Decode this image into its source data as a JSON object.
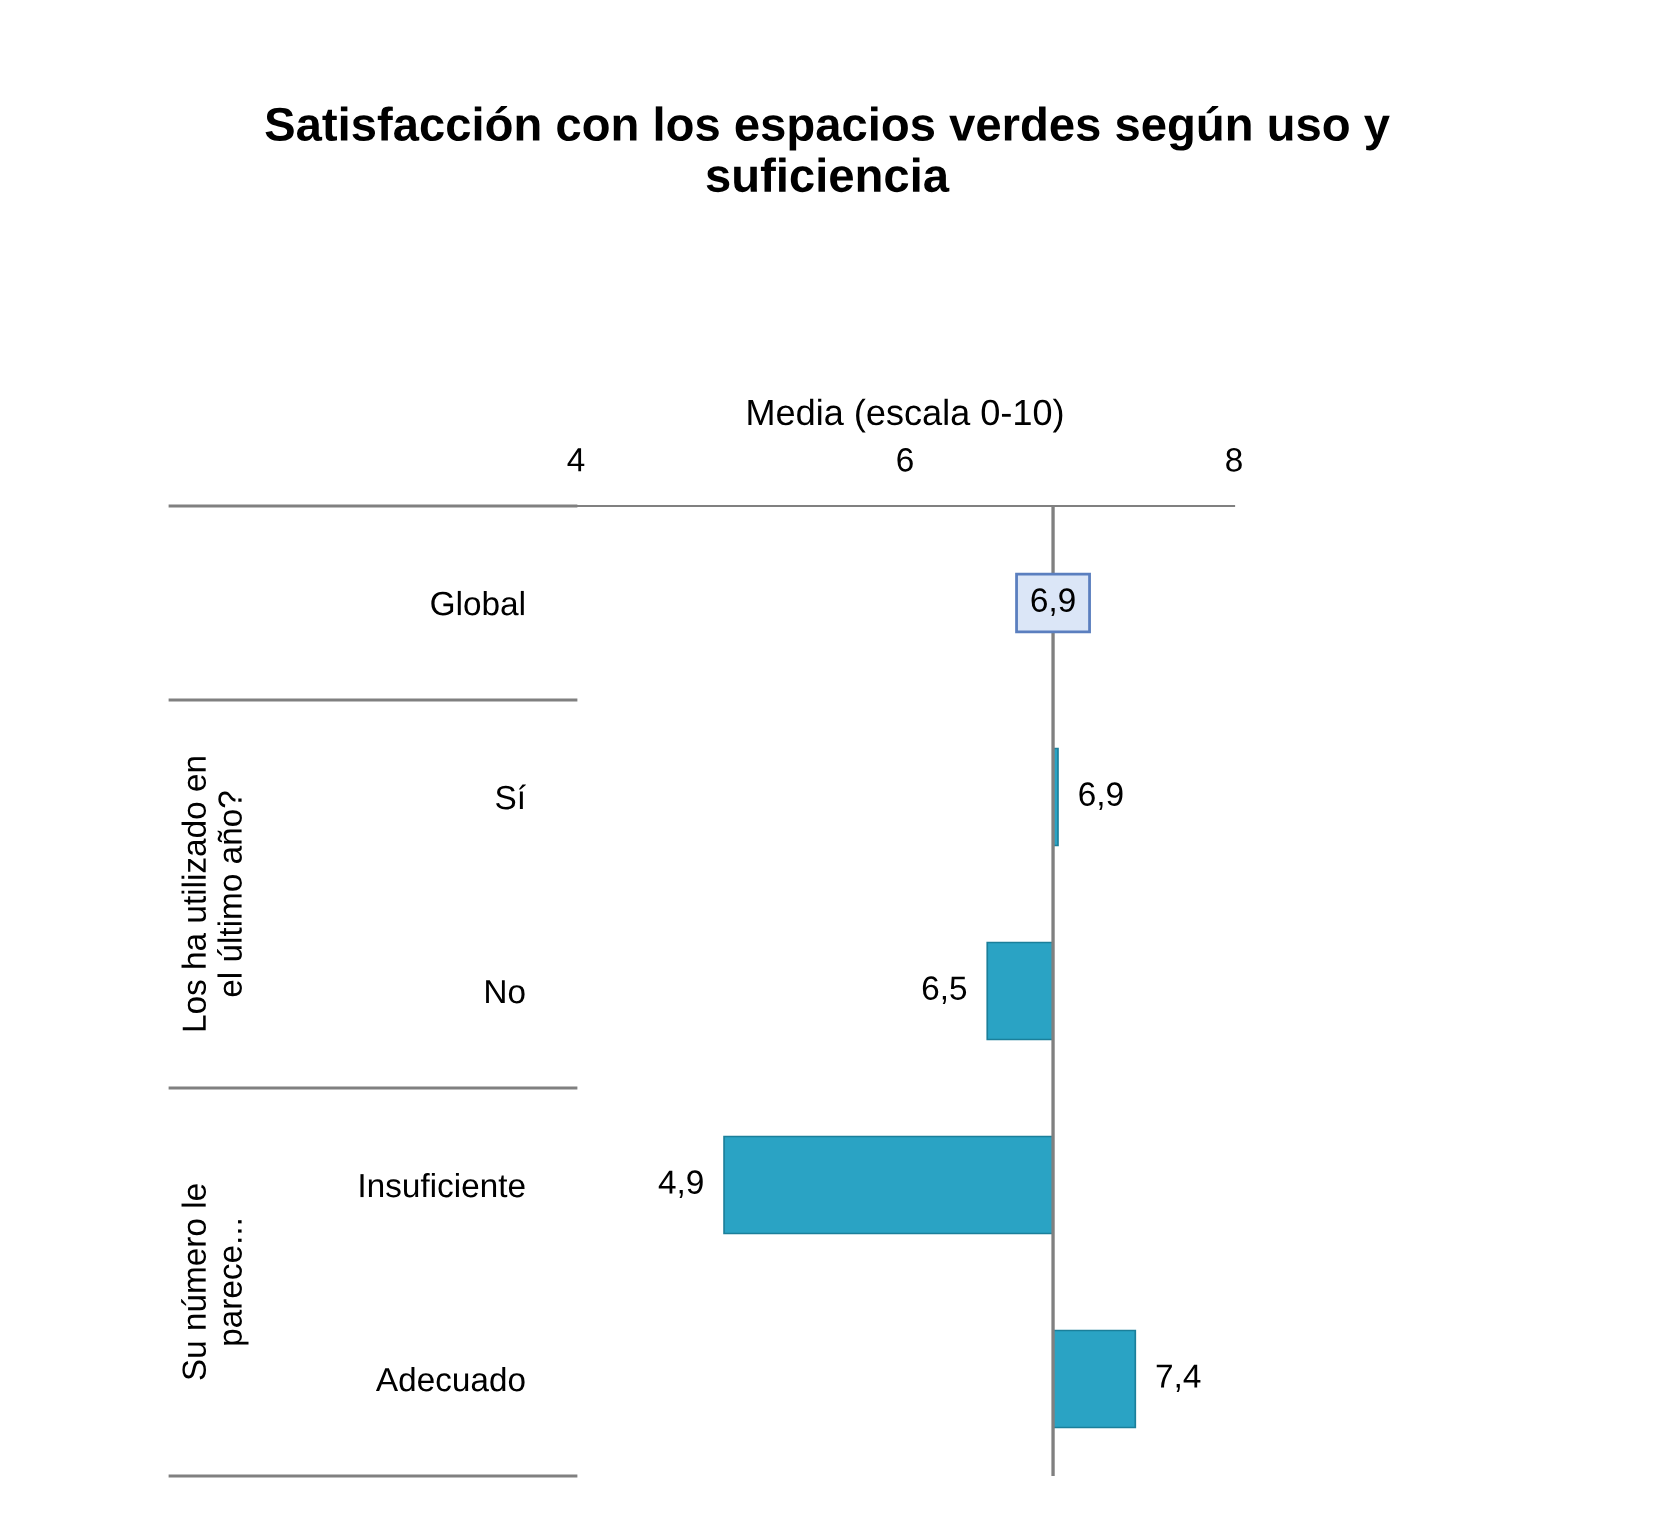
{
  "chart_data": {
    "type": "bar",
    "orientation": "horizontal",
    "title": "Satisfacción con los espacios verdes según uso y\nsuficiencia",
    "xlabel": "Media (escala 0-10)",
    "categories": [
      "Global",
      "Sí",
      "No",
      "Insuficiente",
      "Adecuado"
    ],
    "values": [
      null,
      0.03,
      -0.4,
      -2.0,
      0.5
    ],
    "base": [
      null,
      6.9,
      6.9,
      6.9,
      6.9
    ],
    "value_labels": [
      null,
      "6,9",
      "6,5",
      "4,9",
      "7,4"
    ],
    "color": "#2aa3c4",
    "xlim": [
      4,
      8
    ],
    "xticks": [
      4,
      6,
      8
    ],
    "grid": false,
    "ref_lines": [
      {
        "axis": "x",
        "value": 6.9,
        "label": "6,9",
        "color": "#808080"
      }
    ],
    "annotations": [
      "Los ha utilizado en\nel último año?",
      "Su número le\nparece..."
    ]
  }
}
